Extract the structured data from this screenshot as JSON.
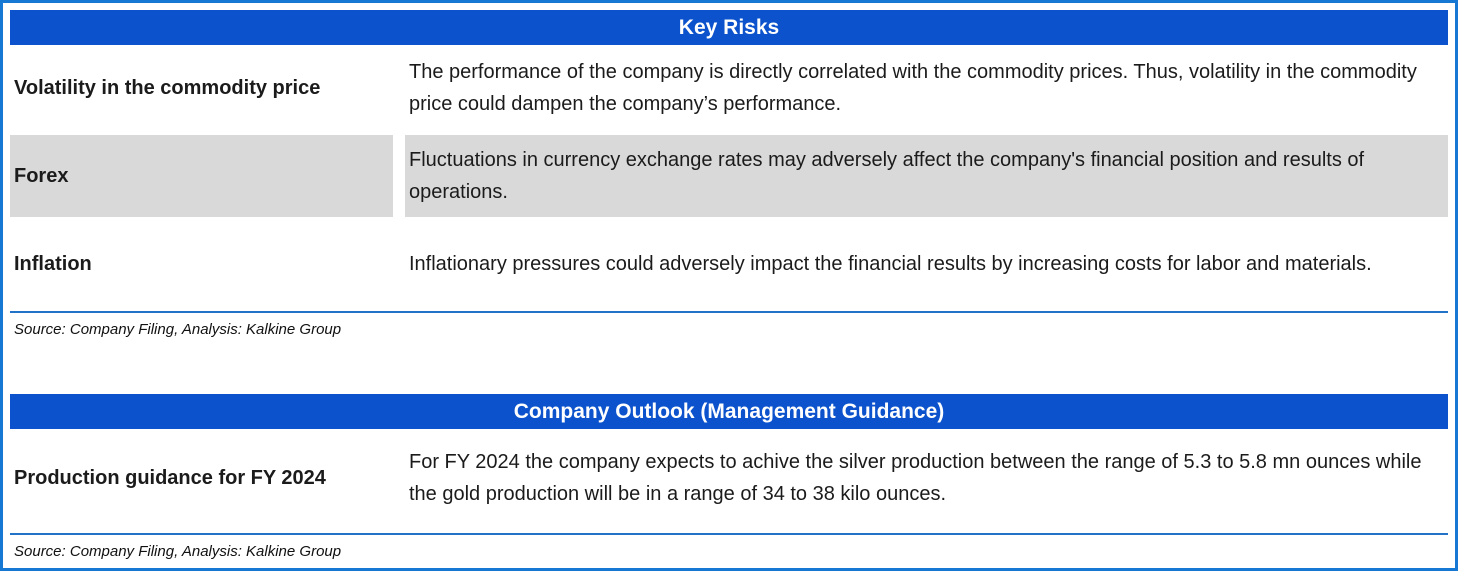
{
  "colors": {
    "header_bg": "#0b52cc",
    "frame_border": "#1778d4",
    "rule_color": "#2273c8",
    "shaded_row_bg": "#d9d9d9",
    "header_text": "#ffffff",
    "body_text": "#1b1b1b"
  },
  "tables": [
    {
      "title": "Key Risks",
      "rows": [
        {
          "label": "Volatility in the commodity price",
          "description": "The performance of the company is directly correlated with the commodity prices. Thus, volatility in the commodity price could dampen the company’s performance.",
          "shaded": false
        },
        {
          "label": "Forex",
          "description": "Fluctuations in currency exchange rates may adversely affect the company's financial position and results of operations.",
          "shaded": true
        },
        {
          "label": "Inflation",
          "description": "Inflationary pressures could adversely impact the financial results by increasing costs for labor and materials.",
          "shaded": false
        }
      ],
      "source": "Source: Company Filing, Analysis: Kalkine Group"
    },
    {
      "title": "Company Outlook (Management Guidance)",
      "rows": [
        {
          "label": "Production guidance for FY 2024",
          "description": "For FY 2024 the company expects to achive the silver production between the range of 5.3 to 5.8 mn ounces while the gold production will be in a range of  34 to 38 kilo ounces.",
          "shaded": false
        }
      ],
      "source": "Source: Company Filing, Analysis: Kalkine Group"
    }
  ]
}
